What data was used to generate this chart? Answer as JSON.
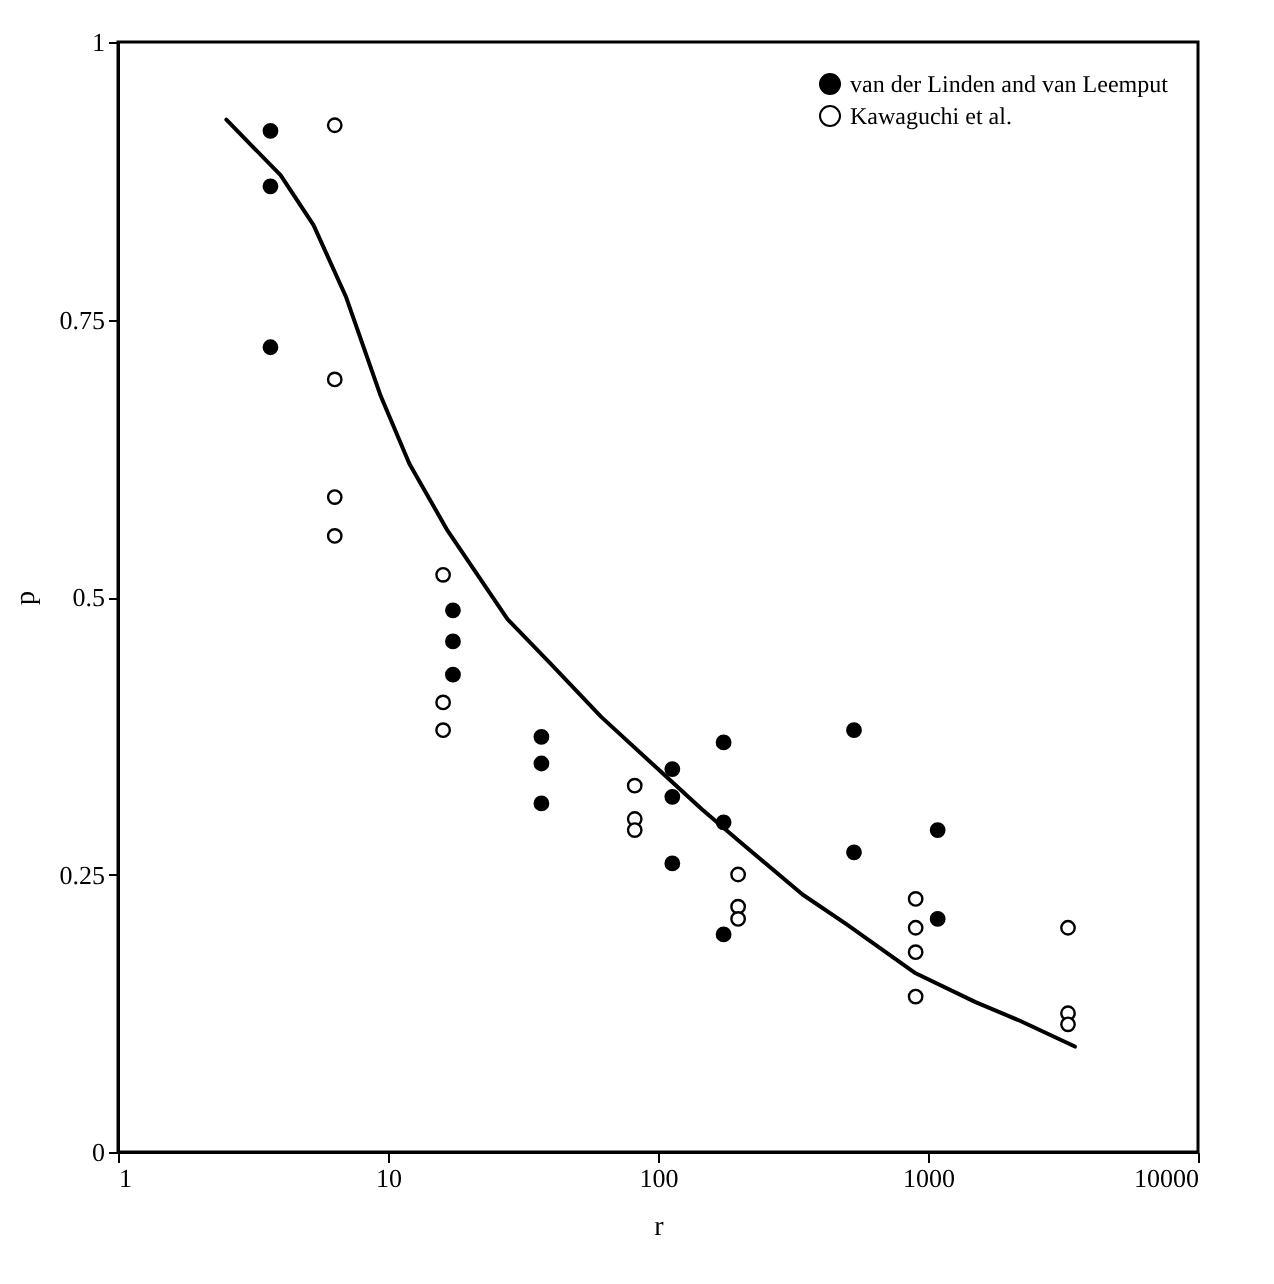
{
  "chart_data": {
    "type": "scatter",
    "xlabel": "r",
    "ylabel": "p",
    "log": "x",
    "xlim": [
      1,
      10000
    ],
    "xticks": [
      1,
      10,
      100,
      1000,
      10000
    ],
    "ylim": [
      0,
      1
    ],
    "yticks": [
      0,
      0.25,
      0.5,
      0.75,
      1
    ],
    "grid": false,
    "legend": "top right",
    "marker": "circle",
    "series": [
      {
        "name": "van der Linden and van Leemput",
        "color": "#000000",
        "x": [
          3.67,
          3.67,
          3.67,
          17.4,
          17.4,
          17.4,
          37,
          37,
          37,
          113,
          113,
          113,
          175,
          175,
          175,
          532,
          532,
          1086,
          1086
        ],
        "values": [
          0.92,
          0.87,
          0.725,
          0.488,
          0.46,
          0.43,
          0.374,
          0.35,
          0.314,
          0.345,
          0.32,
          0.26,
          0.369,
          0.297,
          0.196,
          0.38,
          0.27,
          0.29,
          0.21
        ]
      },
      {
        "name": "Kawaguchi et al.",
        "color": "#ffffff",
        "x": [
          6.35,
          6.35,
          6.35,
          6.35,
          16,
          16,
          16,
          82,
          82,
          82,
          198,
          198,
          198,
          900,
          900,
          900,
          900,
          3300,
          3300,
          3300
        ],
        "values": [
          0.925,
          0.696,
          0.59,
          0.555,
          0.52,
          0.405,
          0.38,
          0.33,
          0.3,
          0.29,
          0.25,
          0.221,
          0.21,
          0.228,
          0.202,
          0.18,
          0.14,
          0.202,
          0.125,
          0.115
        ]
      },
      {
        "color": "#000000",
        "type": "line",
        "line_style": "solid",
        "marker": "none",
        "x": [
          2.52,
          4,
          5.3,
          7,
          9.4,
          12,
          16.6,
          27.7,
          40,
          61.6,
          100,
          145,
          200,
          343,
          500,
          900,
          1500,
          2200,
          3500
        ],
        "values": [
          0.93,
          0.88,
          0.835,
          0.77,
          0.681,
          0.62,
          0.56,
          0.48,
          0.44,
          0.392,
          0.345,
          0.309,
          0.28,
          0.232,
          0.205,
          0.161,
          0.135,
          0.118,
          0.095
        ]
      }
    ]
  }
}
